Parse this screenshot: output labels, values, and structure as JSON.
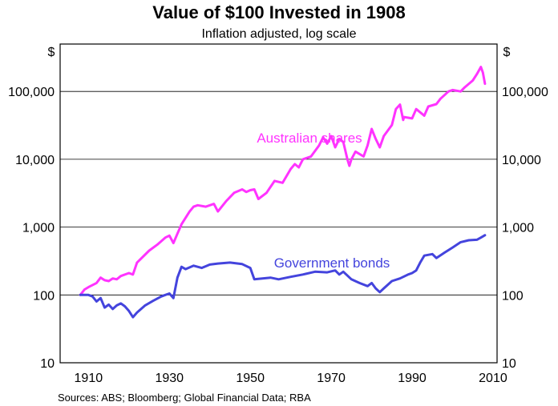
{
  "chart_data": {
    "type": "line",
    "title": "Value of $100 Invested in 1908",
    "subtitle": "Inflation adjusted, log scale",
    "ylabel_left": "$",
    "ylabel_right": "$",
    "xlabel": "",
    "yscale": "log",
    "xlim": [
      1903,
      2011
    ],
    "ylim": [
      10,
      500000
    ],
    "x_ticks": [
      "1910",
      "1930",
      "1950",
      "1970",
      "1990",
      "2010"
    ],
    "y_ticks": [
      "10",
      "100",
      "1,000",
      "10,000",
      "100,000"
    ],
    "grid": "horizontal",
    "source": "Sources: ABS; Bloomberg; Global Financial Data; RBA",
    "series": [
      {
        "name": "Australian shares",
        "color": "#ff33ff",
        "x": [
          1908,
          1909,
          1910,
          1912,
          1913,
          1914,
          1915,
          1916,
          1917,
          1918,
          1920,
          1921,
          1922,
          1925,
          1927,
          1929,
          1930,
          1931,
          1932,
          1933,
          1935,
          1936,
          1937,
          1939,
          1941,
          1942,
          1944,
          1946,
          1948,
          1949,
          1950,
          1951,
          1952,
          1954,
          1956,
          1958,
          1960,
          1961,
          1962,
          1963,
          1965,
          1967,
          1968,
          1969,
          1970,
          1971,
          1972,
          1973,
          1974,
          1974.5,
          1975,
          1976,
          1978,
          1979,
          1980,
          1981,
          1982,
          1983,
          1985,
          1986,
          1987,
          1987.8,
          1988,
          1990,
          1991,
          1993,
          1994,
          1996,
          1997,
          1999,
          2000,
          2002,
          2003,
          2005,
          2006,
          2007,
          2007.5,
          2008
        ],
        "values": [
          100,
          120,
          130,
          150,
          180,
          165,
          160,
          175,
          170,
          190,
          210,
          200,
          300,
          450,
          550,
          700,
          750,
          580,
          800,
          1100,
          1700,
          2000,
          2100,
          2000,
          2200,
          1700,
          2400,
          3200,
          3600,
          3300,
          3500,
          3600,
          2600,
          3200,
          4800,
          4500,
          7200,
          8500,
          7600,
          10000,
          11000,
          16000,
          21000,
          17000,
          22000,
          15000,
          20000,
          18000,
          10000,
          8000,
          10000,
          13000,
          11000,
          16000,
          28000,
          20000,
          15000,
          22000,
          32000,
          55000,
          64000,
          38000,
          42000,
          40000,
          55000,
          44000,
          60000,
          65000,
          78000,
          100000,
          105000,
          100000,
          115000,
          145000,
          180000,
          230000,
          190000,
          130000
        ]
      },
      {
        "name": "Government bonds",
        "color": "#4444dd",
        "x": [
          1908,
          1910,
          1911,
          1912,
          1913,
          1914,
          1915,
          1916,
          1917,
          1918,
          1919,
          1920,
          1921,
          1922,
          1923,
          1924,
          1926,
          1928,
          1929,
          1930,
          1931,
          1932,
          1933,
          1934,
          1936,
          1938,
          1940,
          1942,
          1945,
          1948,
          1950,
          1951,
          1953,
          1955,
          1957,
          1960,
          1963,
          1966,
          1969,
          1971,
          1972,
          1973,
          1975,
          1977,
          1979,
          1980,
          1981,
          1982,
          1983,
          1985,
          1987,
          1989,
          1990,
          1991,
          1992,
          1993,
          1995,
          1996,
          1998,
          2000,
          2002,
          2004,
          2006,
          2007,
          2008
        ],
        "values": [
          100,
          100,
          95,
          80,
          90,
          65,
          72,
          62,
          70,
          75,
          68,
          58,
          47,
          55,
          62,
          70,
          82,
          95,
          100,
          105,
          90,
          180,
          260,
          240,
          270,
          250,
          280,
          290,
          300,
          285,
          250,
          170,
          175,
          180,
          170,
          185,
          200,
          220,
          215,
          230,
          200,
          220,
          170,
          150,
          135,
          150,
          125,
          110,
          125,
          160,
          175,
          200,
          210,
          230,
          300,
          380,
          400,
          350,
          420,
          500,
          600,
          640,
          650,
          700,
          760
        ]
      }
    ]
  }
}
